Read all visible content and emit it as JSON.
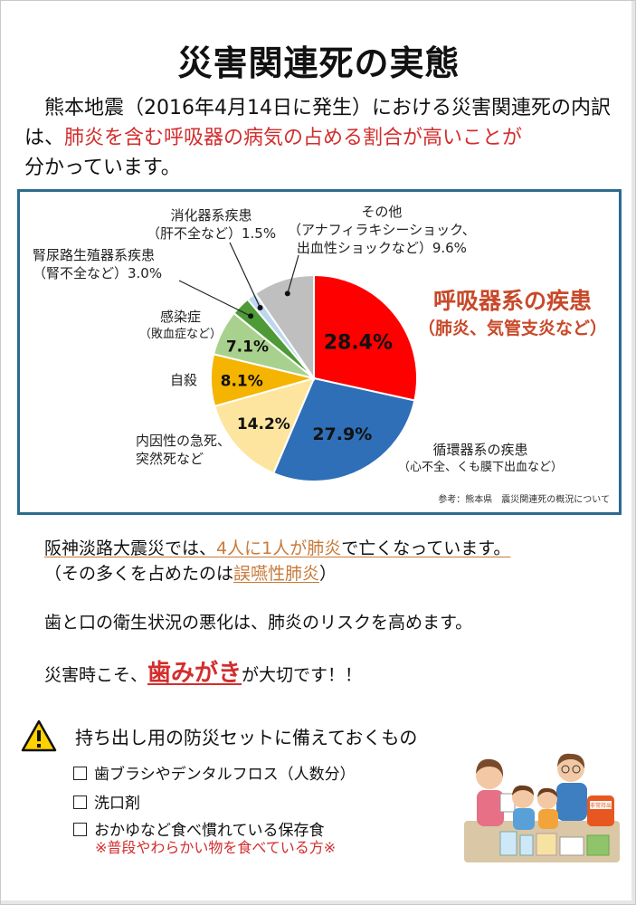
{
  "title": "災害関連死の実態",
  "intro": {
    "part1": "　熊本地震（2016年4月14日に発生）における災害関連死の内訳は、",
    "highlight": "肺炎を含む呼吸器の病気の占める割合が高いことが",
    "part2": "分かっています。"
  },
  "chart_data": {
    "type": "pie",
    "slices": [
      {
        "label": "呼吸器系の疾患",
        "sub": "（肺炎、気管支炎など）",
        "value": 28.4,
        "pct_text": "28.4%",
        "color": "#ff0000"
      },
      {
        "label": "循環器系の疾患",
        "sub": "（心不全、くも膜下出血など）",
        "value": 27.9,
        "pct_text": "27.9%",
        "color": "#2e6fb7"
      },
      {
        "label": "内因性の急死、",
        "sub": "突然死など",
        "value": 14.2,
        "pct_text": "14.2%",
        "color": "#fde5a0"
      },
      {
        "label": "自殺",
        "sub": "",
        "value": 8.1,
        "pct_text": "8.1%",
        "color": "#f5b400"
      },
      {
        "label": "感染症",
        "sub": "（敗血症など）",
        "value": 7.1,
        "pct_text": "7.1%",
        "color": "#a9d18e"
      },
      {
        "label": "腎尿路生殖器系疾患",
        "sub": "（腎不全など）3.0%",
        "value": 3.0,
        "pct_text": "",
        "color": "#4e9a36"
      },
      {
        "label": "消化器系疾患",
        "sub": "（肝不全など）1.5%",
        "value": 1.5,
        "pct_text": "",
        "color": "#bdd7ee"
      },
      {
        "label": "その他",
        "sub": "（アナフィラキシーショック、",
        "sub2": "出血性ショックなど）9.6%",
        "value": 9.6,
        "pct_text": "",
        "color": "#bfbfbf"
      }
    ],
    "source": "参考：熊本県　震災関連死の概況について"
  },
  "hanshin": {
    "pre": "阪神淡路大震災では、",
    "link": "4人に1人が肺炎",
    "post": "で亡くなっています。",
    "line2_pre": "（その多くを占めたのは",
    "line2_link": "誤嚥性肺炎",
    "line2_post": "）"
  },
  "hygiene": "歯と口の衛生状況の悪化は、肺炎のリスクを高めます。",
  "brushing": {
    "pre": "災害時こそ、",
    "emph": "歯みがき",
    "post": "が大切です！！"
  },
  "checklist": {
    "title": "持ち出し用の防災セットに備えておくもの",
    "items": [
      "歯ブラシやデンタルフロス（人数分）",
      "洗口剤",
      "おかゆなど食べ慣れている保存食"
    ],
    "note": "※普段やわらかい物を食べている方※"
  },
  "illustration": {
    "bag_label": "非常持出"
  }
}
